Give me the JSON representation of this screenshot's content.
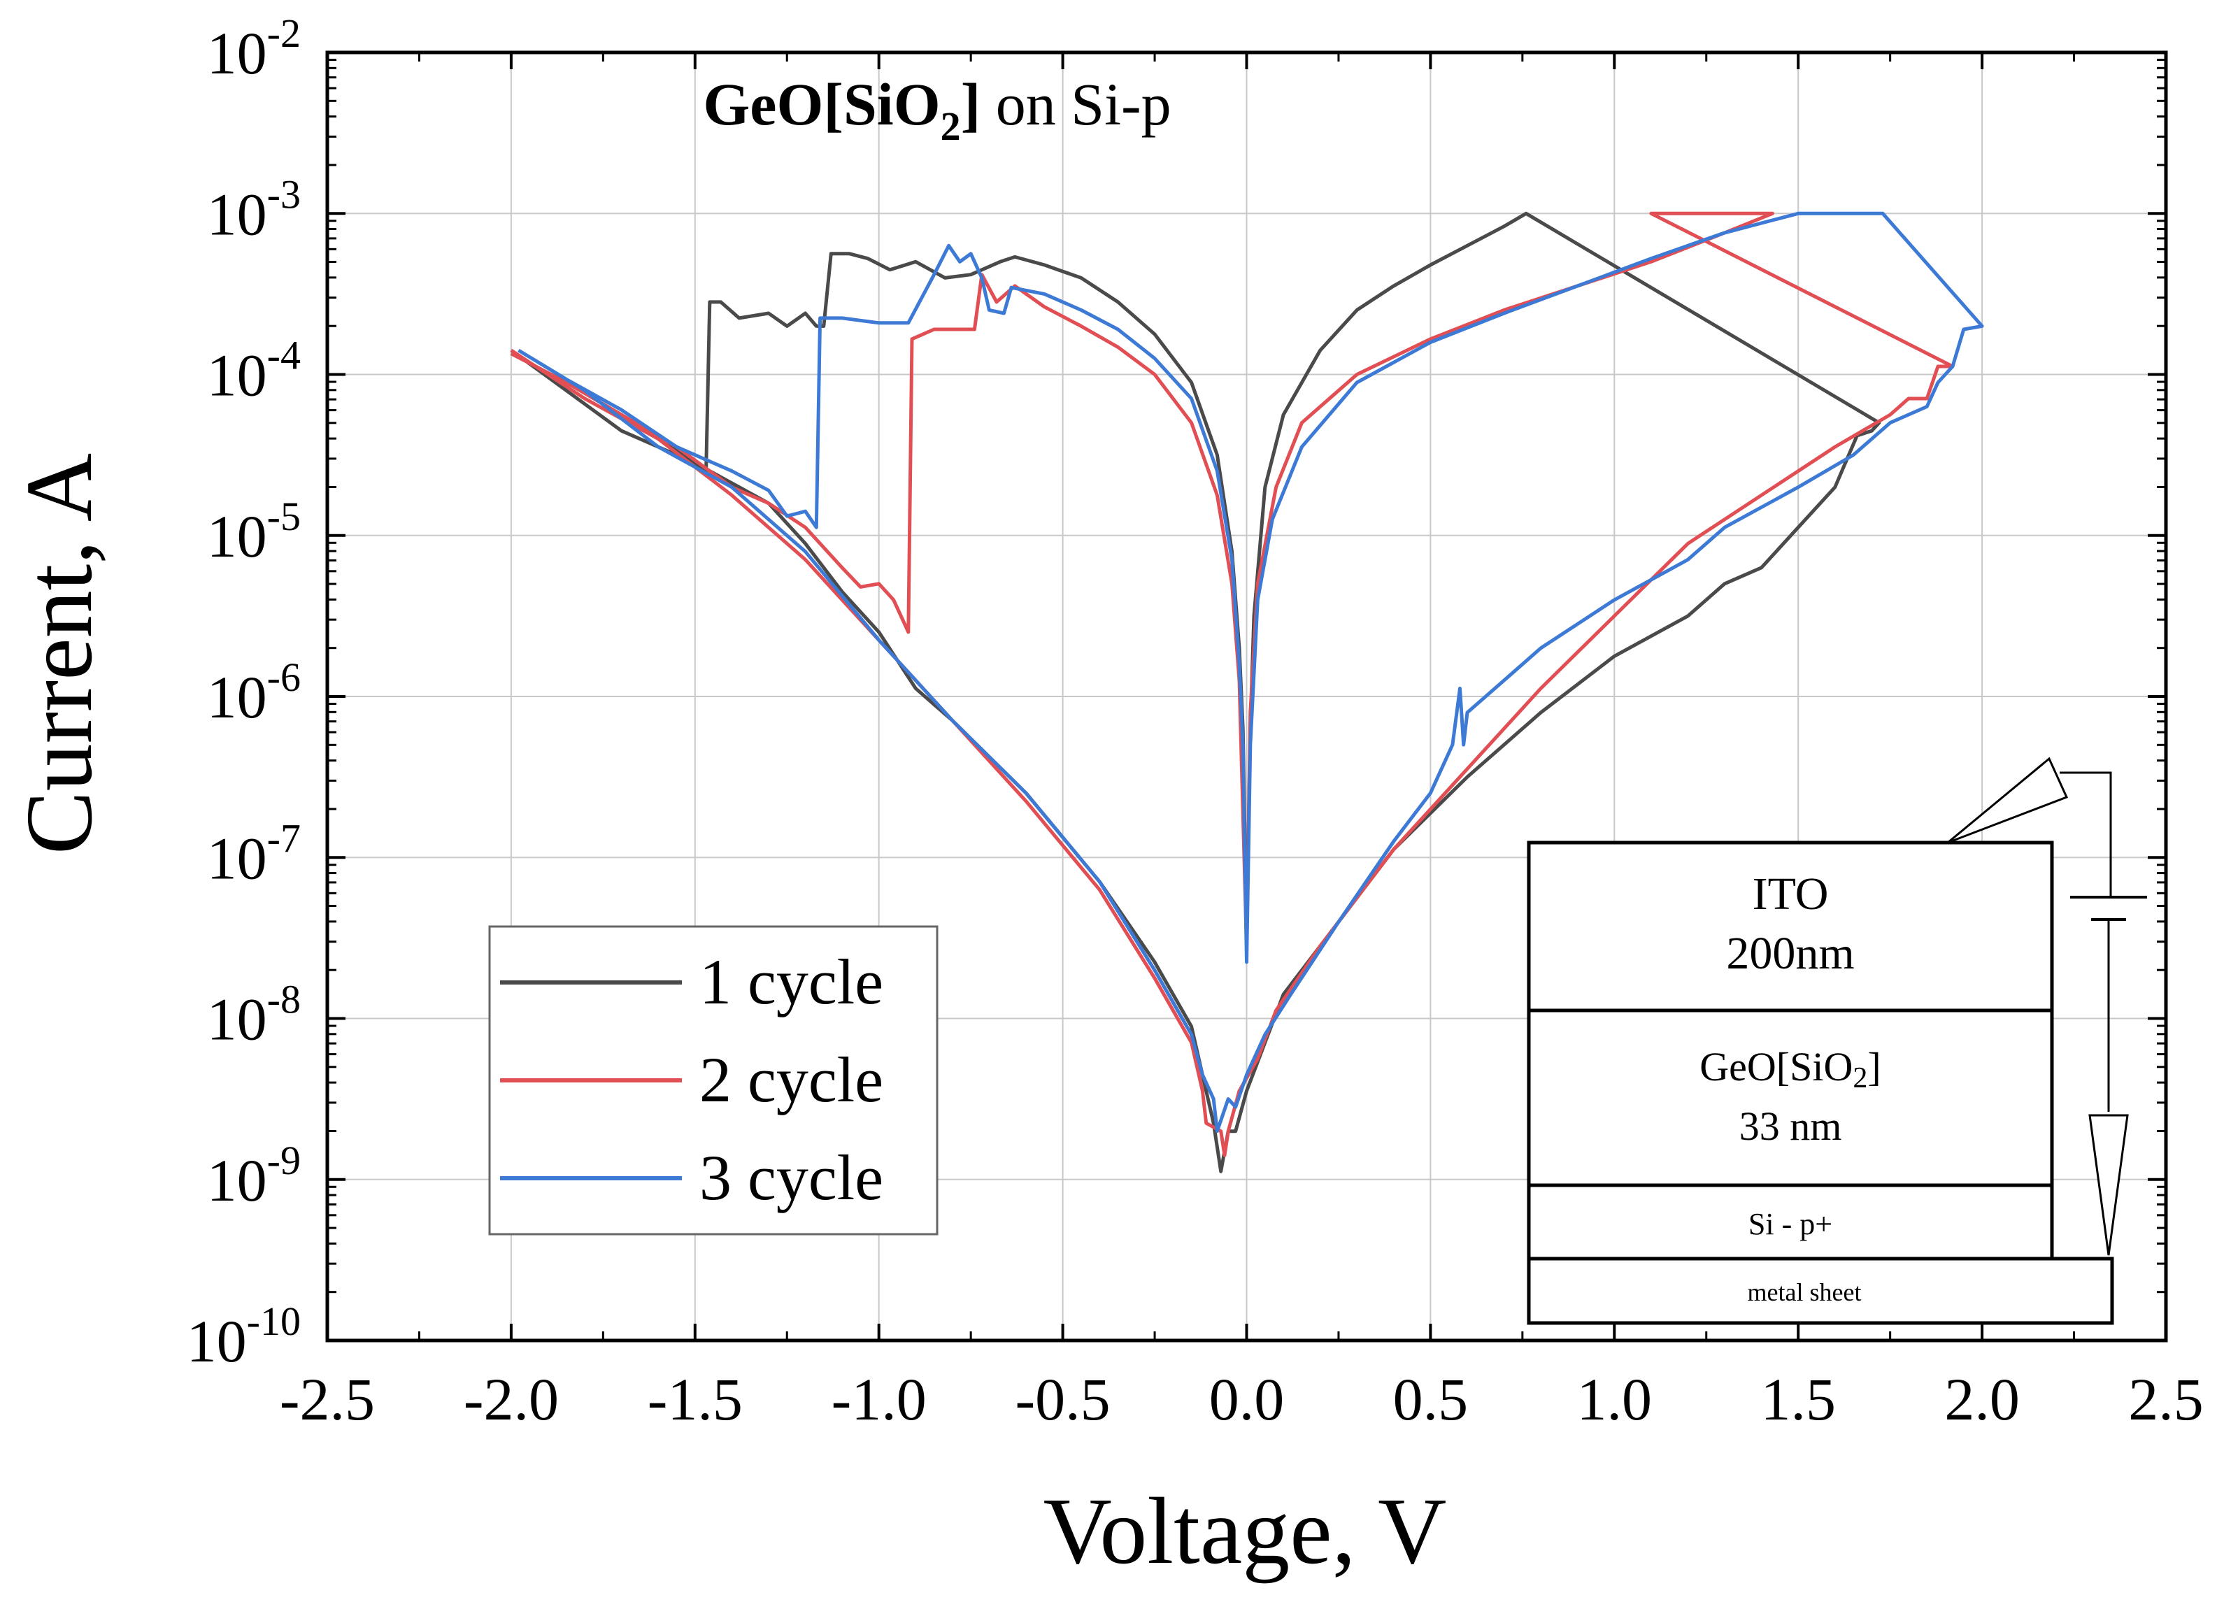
{
  "chart_data": {
    "type": "line",
    "title_bold": "GeO[SiO",
    "title_bold_sub": "2",
    "title_bold_end": "]",
    "title_rest": " on Si-p",
    "xlabel": "Voltage, V",
    "ylabel": "Current, A",
    "xlim": [
      -2.5,
      2.5
    ],
    "ylim_log10": [
      -10,
      -2
    ],
    "y_scale": "log",
    "x_ticks": [
      "-2.5",
      "-2.0",
      "-1.5",
      "-1.0",
      "-0.5",
      "0.0",
      "0.5",
      "1.0",
      "1.5",
      "2.0",
      "2.5"
    ],
    "y_ticks": [
      {
        "base": "10",
        "exp": "-10"
      },
      {
        "base": "10",
        "exp": "-9"
      },
      {
        "base": "10",
        "exp": "-8"
      },
      {
        "base": "10",
        "exp": "-7"
      },
      {
        "base": "10",
        "exp": "-6"
      },
      {
        "base": "10",
        "exp": "-5"
      },
      {
        "base": "10",
        "exp": "-4"
      },
      {
        "base": "10",
        "exp": "-3"
      },
      {
        "base": "10",
        "exp": "-2"
      }
    ],
    "grid": true,
    "legend_position": "bottom-left",
    "series": [
      {
        "name": "1 cycle",
        "color": "#4a4a4a",
        "points": [
          [
            -2.0,
            -3.87
          ],
          [
            -1.85,
            -4.05
          ],
          [
            -1.7,
            -4.25
          ],
          [
            -1.5,
            -4.55
          ],
          [
            -1.47,
            -4.6
          ],
          [
            -1.46,
            -3.55
          ],
          [
            -1.43,
            -3.55
          ],
          [
            -1.38,
            -3.65
          ],
          [
            -1.3,
            -3.62
          ],
          [
            -1.25,
            -3.7
          ],
          [
            -1.2,
            -3.62
          ],
          [
            -1.17,
            -3.7
          ],
          [
            -1.15,
            -3.7
          ],
          [
            -1.13,
            -3.25
          ],
          [
            -1.08,
            -3.25
          ],
          [
            -1.03,
            -3.28
          ],
          [
            -0.97,
            -3.35
          ],
          [
            -0.9,
            -3.3
          ],
          [
            -0.82,
            -3.4
          ],
          [
            -0.75,
            -3.38
          ],
          [
            -0.67,
            -3.3
          ],
          [
            -0.63,
            -3.27
          ],
          [
            -0.55,
            -3.32
          ],
          [
            -0.45,
            -3.4
          ],
          [
            -0.35,
            -3.55
          ],
          [
            -0.25,
            -3.75
          ],
          [
            -0.15,
            -4.05
          ],
          [
            -0.08,
            -4.5
          ],
          [
            -0.04,
            -5.1
          ],
          [
            -0.02,
            -5.7
          ],
          [
            -0.01,
            -6.2
          ],
          [
            0.0,
            -7.5
          ],
          [
            0.01,
            -6.2
          ],
          [
            0.02,
            -5.5
          ],
          [
            0.05,
            -4.7
          ],
          [
            0.1,
            -4.25
          ],
          [
            0.2,
            -3.85
          ],
          [
            0.3,
            -3.6
          ],
          [
            0.4,
            -3.45
          ],
          [
            0.5,
            -3.32
          ],
          [
            0.6,
            -3.2
          ],
          [
            0.7,
            -3.08
          ],
          [
            0.76,
            -3.0
          ],
          [
            1.72,
            -4.3
          ],
          [
            1.7,
            -4.35
          ],
          [
            1.66,
            -4.38
          ],
          [
            1.6,
            -4.7
          ],
          [
            1.5,
            -4.95
          ],
          [
            1.4,
            -5.2
          ],
          [
            1.3,
            -5.3
          ],
          [
            1.2,
            -5.5
          ],
          [
            1.0,
            -5.75
          ],
          [
            0.8,
            -6.1
          ],
          [
            0.6,
            -6.5
          ],
          [
            0.4,
            -6.95
          ],
          [
            0.25,
            -7.4
          ],
          [
            0.1,
            -7.85
          ],
          [
            0.05,
            -8.15
          ],
          [
            0.0,
            -8.45
          ],
          [
            -0.03,
            -8.7
          ],
          [
            -0.05,
            -8.7
          ],
          [
            -0.07,
            -8.95
          ],
          [
            -0.09,
            -8.65
          ],
          [
            -0.1,
            -8.55
          ],
          [
            -0.15,
            -8.05
          ],
          [
            -0.25,
            -7.65
          ],
          [
            -0.4,
            -7.15
          ],
          [
            -0.6,
            -6.6
          ],
          [
            -0.8,
            -6.15
          ],
          [
            -0.9,
            -5.95
          ],
          [
            -1.0,
            -5.6
          ],
          [
            -1.1,
            -5.35
          ],
          [
            -1.2,
            -5.05
          ],
          [
            -1.3,
            -4.8
          ],
          [
            -1.5,
            -4.55
          ],
          [
            -1.7,
            -4.35
          ],
          [
            -1.85,
            -4.1
          ],
          [
            -2.0,
            -3.85
          ]
        ]
      },
      {
        "name": "2 cycle",
        "color": "#e14f54",
        "points": [
          [
            -2.0,
            -3.87
          ],
          [
            -1.85,
            -4.05
          ],
          [
            -1.7,
            -4.25
          ],
          [
            -1.55,
            -4.45
          ],
          [
            -1.4,
            -4.7
          ],
          [
            -1.3,
            -4.8
          ],
          [
            -1.2,
            -4.95
          ],
          [
            -1.1,
            -5.2
          ],
          [
            -1.05,
            -5.32
          ],
          [
            -1.0,
            -5.3
          ],
          [
            -0.96,
            -5.4
          ],
          [
            -0.92,
            -5.6
          ],
          [
            -0.91,
            -3.78
          ],
          [
            -0.85,
            -3.72
          ],
          [
            -0.78,
            -3.72
          ],
          [
            -0.74,
            -3.72
          ],
          [
            -0.72,
            -3.38
          ],
          [
            -0.68,
            -3.55
          ],
          [
            -0.63,
            -3.45
          ],
          [
            -0.55,
            -3.58
          ],
          [
            -0.45,
            -3.7
          ],
          [
            -0.35,
            -3.83
          ],
          [
            -0.25,
            -4.0
          ],
          [
            -0.15,
            -4.3
          ],
          [
            -0.08,
            -4.75
          ],
          [
            -0.04,
            -5.3
          ],
          [
            -0.02,
            -5.9
          ],
          [
            0.0,
            -7.55
          ],
          [
            0.01,
            -6.1
          ],
          [
            0.03,
            -5.3
          ],
          [
            0.08,
            -4.7
          ],
          [
            0.15,
            -4.3
          ],
          [
            0.3,
            -4.0
          ],
          [
            0.5,
            -3.78
          ],
          [
            0.7,
            -3.6
          ],
          [
            0.9,
            -3.45
          ],
          [
            1.1,
            -3.3
          ],
          [
            1.3,
            -3.12
          ],
          [
            1.43,
            -3.0
          ],
          [
            1.1,
            -3.0
          ],
          [
            1.92,
            -3.95
          ],
          [
            1.88,
            -3.95
          ],
          [
            1.85,
            -4.15
          ],
          [
            1.8,
            -4.15
          ],
          [
            1.75,
            -4.25
          ],
          [
            1.6,
            -4.45
          ],
          [
            1.4,
            -4.75
          ],
          [
            1.2,
            -5.05
          ],
          [
            1.0,
            -5.5
          ],
          [
            0.8,
            -5.95
          ],
          [
            0.6,
            -6.45
          ],
          [
            0.4,
            -6.95
          ],
          [
            0.2,
            -7.55
          ],
          [
            0.08,
            -7.95
          ],
          [
            0.03,
            -8.25
          ],
          [
            -0.02,
            -8.45
          ],
          [
            -0.05,
            -8.7
          ],
          [
            -0.06,
            -8.85
          ],
          [
            -0.07,
            -8.7
          ],
          [
            -0.11,
            -8.65
          ],
          [
            -0.12,
            -8.45
          ],
          [
            -0.15,
            -8.15
          ],
          [
            -0.25,
            -7.75
          ],
          [
            -0.4,
            -7.2
          ],
          [
            -0.6,
            -6.65
          ],
          [
            -0.8,
            -6.15
          ],
          [
            -1.0,
            -5.65
          ],
          [
            -1.2,
            -5.15
          ],
          [
            -1.4,
            -4.75
          ],
          [
            -1.6,
            -4.4
          ],
          [
            -1.8,
            -4.15
          ],
          [
            -2.0,
            -3.85
          ]
        ]
      },
      {
        "name": "3 cycle",
        "color": "#3d7ad6",
        "points": [
          [
            -1.98,
            -3.85
          ],
          [
            -1.85,
            -4.03
          ],
          [
            -1.7,
            -4.22
          ],
          [
            -1.55,
            -4.45
          ],
          [
            -1.4,
            -4.6
          ],
          [
            -1.3,
            -4.72
          ],
          [
            -1.25,
            -4.88
          ],
          [
            -1.2,
            -4.85
          ],
          [
            -1.17,
            -4.95
          ],
          [
            -1.16,
            -3.65
          ],
          [
            -1.1,
            -3.65
          ],
          [
            -1.0,
            -3.68
          ],
          [
            -0.92,
            -3.68
          ],
          [
            -0.85,
            -3.38
          ],
          [
            -0.81,
            -3.2
          ],
          [
            -0.78,
            -3.3
          ],
          [
            -0.75,
            -3.25
          ],
          [
            -0.72,
            -3.4
          ],
          [
            -0.7,
            -3.6
          ],
          [
            -0.66,
            -3.62
          ],
          [
            -0.64,
            -3.46
          ],
          [
            -0.55,
            -3.5
          ],
          [
            -0.45,
            -3.6
          ],
          [
            -0.35,
            -3.72
          ],
          [
            -0.25,
            -3.9
          ],
          [
            -0.15,
            -4.15
          ],
          [
            -0.08,
            -4.6
          ],
          [
            -0.04,
            -5.15
          ],
          [
            -0.02,
            -5.8
          ],
          [
            -0.01,
            -6.3
          ],
          [
            0.0,
            -7.65
          ],
          [
            0.01,
            -6.3
          ],
          [
            0.03,
            -5.4
          ],
          [
            0.07,
            -4.9
          ],
          [
            0.15,
            -4.45
          ],
          [
            0.3,
            -4.05
          ],
          [
            0.5,
            -3.8
          ],
          [
            0.7,
            -3.62
          ],
          [
            0.9,
            -3.45
          ],
          [
            1.1,
            -3.28
          ],
          [
            1.3,
            -3.12
          ],
          [
            1.5,
            -3.0
          ],
          [
            1.67,
            -3.0
          ],
          [
            1.73,
            -3.0
          ],
          [
            2.0,
            -3.7
          ],
          [
            1.95,
            -3.72
          ],
          [
            1.92,
            -3.95
          ],
          [
            1.88,
            -4.05
          ],
          [
            1.85,
            -4.2
          ],
          [
            1.75,
            -4.3
          ],
          [
            1.65,
            -4.5
          ],
          [
            1.5,
            -4.7
          ],
          [
            1.3,
            -4.95
          ],
          [
            1.2,
            -5.15
          ],
          [
            1.0,
            -5.4
          ],
          [
            0.8,
            -5.7
          ],
          [
            0.7,
            -5.9
          ],
          [
            0.6,
            -6.1
          ],
          [
            0.59,
            -6.3
          ],
          [
            0.58,
            -5.95
          ],
          [
            0.56,
            -6.3
          ],
          [
            0.5,
            -6.6
          ],
          [
            0.4,
            -6.9
          ],
          [
            0.25,
            -7.4
          ],
          [
            0.12,
            -7.85
          ],
          [
            0.05,
            -8.1
          ],
          [
            0.0,
            -8.35
          ],
          [
            -0.03,
            -8.55
          ],
          [
            -0.05,
            -8.5
          ],
          [
            -0.08,
            -8.7
          ],
          [
            -0.09,
            -8.5
          ],
          [
            -0.12,
            -8.35
          ],
          [
            -0.15,
            -8.1
          ],
          [
            -0.25,
            -7.7
          ],
          [
            -0.4,
            -7.15
          ],
          [
            -0.6,
            -6.6
          ],
          [
            -0.8,
            -6.15
          ],
          [
            -1.0,
            -5.65
          ],
          [
            -1.2,
            -5.1
          ],
          [
            -1.4,
            -4.7
          ],
          [
            -1.6,
            -4.45
          ],
          [
            -1.8,
            -4.1
          ],
          [
            -1.98,
            -3.85
          ]
        ]
      }
    ]
  },
  "inset": {
    "layer1_line1": "ITO",
    "layer1_line2": "200nm",
    "layer2_line1": "GeO[SiO",
    "layer2_sub": "2",
    "layer2_end": "]",
    "layer2_line2": "33 nm",
    "layer3": "Si - p+",
    "layer4": "metal sheet"
  }
}
